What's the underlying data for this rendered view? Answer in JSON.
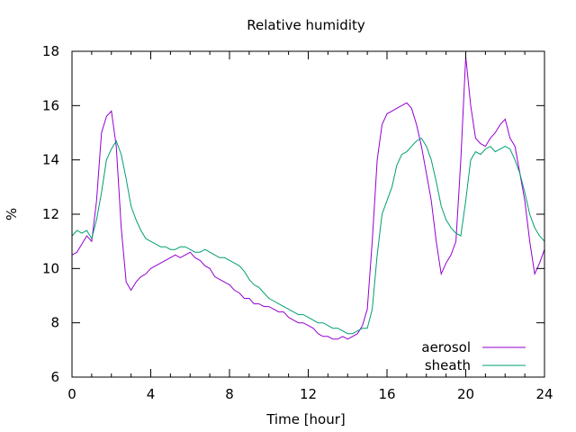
{
  "chart_data": {
    "type": "line",
    "title": "Relative humidity",
    "xlabel": "Time [hour]",
    "ylabel": "%",
    "xlim": [
      0,
      24
    ],
    "ylim": [
      6,
      18
    ],
    "xticks": [
      0,
      4,
      8,
      12,
      16,
      20,
      24
    ],
    "yticks": [
      6,
      8,
      10,
      12,
      14,
      16,
      18
    ],
    "grid": false,
    "legend_position": "bottom-right",
    "series": [
      {
        "name": "aerosol",
        "color": "#9400d3",
        "x": [
          0,
          0.25,
          0.5,
          0.75,
          1,
          1.25,
          1.5,
          1.75,
          2,
          2.25,
          2.5,
          2.75,
          3,
          3.25,
          3.5,
          3.75,
          4,
          4.25,
          4.5,
          4.75,
          5,
          5.25,
          5.5,
          5.75,
          6,
          6.25,
          6.5,
          6.75,
          7,
          7.25,
          7.5,
          7.75,
          8,
          8.25,
          8.5,
          8.75,
          9,
          9.25,
          9.5,
          9.75,
          10,
          10.25,
          10.5,
          10.75,
          11,
          11.25,
          11.5,
          11.75,
          12,
          12.25,
          12.5,
          12.75,
          13,
          13.25,
          13.5,
          13.75,
          14,
          14.25,
          14.5,
          14.75,
          15,
          15.25,
          15.5,
          15.75,
          16,
          16.25,
          16.5,
          16.75,
          17,
          17.25,
          17.5,
          17.75,
          18,
          18.25,
          18.5,
          18.75,
          19,
          19.25,
          19.5,
          19.75,
          20,
          20.25,
          20.5,
          20.75,
          21,
          21.25,
          21.5,
          21.75,
          22,
          22.25,
          22.5,
          22.75,
          23,
          23.25,
          23.5,
          23.75,
          24
        ],
        "values": [
          10.5,
          10.6,
          10.9,
          11.2,
          11.0,
          12.5,
          15.0,
          15.6,
          15.8,
          14.5,
          11.5,
          9.5,
          9.2,
          9.5,
          9.7,
          9.8,
          10.0,
          10.1,
          10.2,
          10.3,
          10.4,
          10.5,
          10.4,
          10.5,
          10.6,
          10.4,
          10.3,
          10.1,
          10.0,
          9.7,
          9.6,
          9.5,
          9.4,
          9.2,
          9.1,
          8.9,
          8.9,
          8.7,
          8.7,
          8.6,
          8.6,
          8.5,
          8.4,
          8.4,
          8.2,
          8.1,
          8.0,
          8.0,
          7.9,
          7.8,
          7.6,
          7.5,
          7.5,
          7.4,
          7.4,
          7.5,
          7.4,
          7.5,
          7.6,
          7.9,
          8.5,
          11.0,
          14.0,
          15.3,
          15.7,
          15.8,
          15.9,
          16.0,
          16.1,
          15.9,
          15.3,
          14.5,
          13.5,
          12.5,
          11.0,
          9.8,
          10.2,
          10.5,
          11.0,
          14.0,
          17.8,
          16.0,
          14.8,
          14.6,
          14.5,
          14.8,
          15.0,
          15.3,
          15.5,
          14.8,
          14.5,
          13.5,
          12.5,
          11.0,
          9.8,
          10.2,
          10.7
        ]
      },
      {
        "name": "sheath",
        "color": "#009e73",
        "x": [
          0,
          0.25,
          0.5,
          0.75,
          1,
          1.25,
          1.5,
          1.75,
          2,
          2.25,
          2.5,
          2.75,
          3,
          3.25,
          3.5,
          3.75,
          4,
          4.25,
          4.5,
          4.75,
          5,
          5.25,
          5.5,
          5.75,
          6,
          6.25,
          6.5,
          6.75,
          7,
          7.25,
          7.5,
          7.75,
          8,
          8.25,
          8.5,
          8.75,
          9,
          9.25,
          9.5,
          9.75,
          10,
          10.25,
          10.5,
          10.75,
          11,
          11.25,
          11.5,
          11.75,
          12,
          12.25,
          12.5,
          12.75,
          13,
          13.25,
          13.5,
          13.75,
          14,
          14.25,
          14.5,
          14.75,
          15,
          15.25,
          15.5,
          15.75,
          16,
          16.25,
          16.5,
          16.75,
          17,
          17.25,
          17.5,
          17.75,
          18,
          18.25,
          18.5,
          18.75,
          19,
          19.25,
          19.5,
          19.75,
          20,
          20.25,
          20.5,
          20.75,
          21,
          21.25,
          21.5,
          21.75,
          22,
          22.25,
          22.5,
          22.75,
          23,
          23.25,
          23.5,
          23.75,
          24
        ],
        "values": [
          11.2,
          11.4,
          11.3,
          11.4,
          11.1,
          11.8,
          12.8,
          14.0,
          14.4,
          14.7,
          14.2,
          13.3,
          12.3,
          11.8,
          11.4,
          11.1,
          11.0,
          10.9,
          10.8,
          10.8,
          10.7,
          10.7,
          10.8,
          10.8,
          10.7,
          10.6,
          10.6,
          10.7,
          10.6,
          10.5,
          10.4,
          10.4,
          10.3,
          10.2,
          10.1,
          9.9,
          9.6,
          9.4,
          9.3,
          9.1,
          8.9,
          8.8,
          8.7,
          8.6,
          8.5,
          8.4,
          8.3,
          8.3,
          8.2,
          8.1,
          8.0,
          8.0,
          7.9,
          7.8,
          7.8,
          7.7,
          7.6,
          7.6,
          7.7,
          7.8,
          7.8,
          8.5,
          10.5,
          12.0,
          12.5,
          13.0,
          13.8,
          14.2,
          14.3,
          14.5,
          14.7,
          14.8,
          14.5,
          14.0,
          13.2,
          12.3,
          11.8,
          11.5,
          11.3,
          11.2,
          12.5,
          14.0,
          14.3,
          14.2,
          14.4,
          14.5,
          14.3,
          14.4,
          14.5,
          14.4,
          14.0,
          13.5,
          12.8,
          12.0,
          11.5,
          11.2,
          11.0
        ]
      }
    ]
  }
}
